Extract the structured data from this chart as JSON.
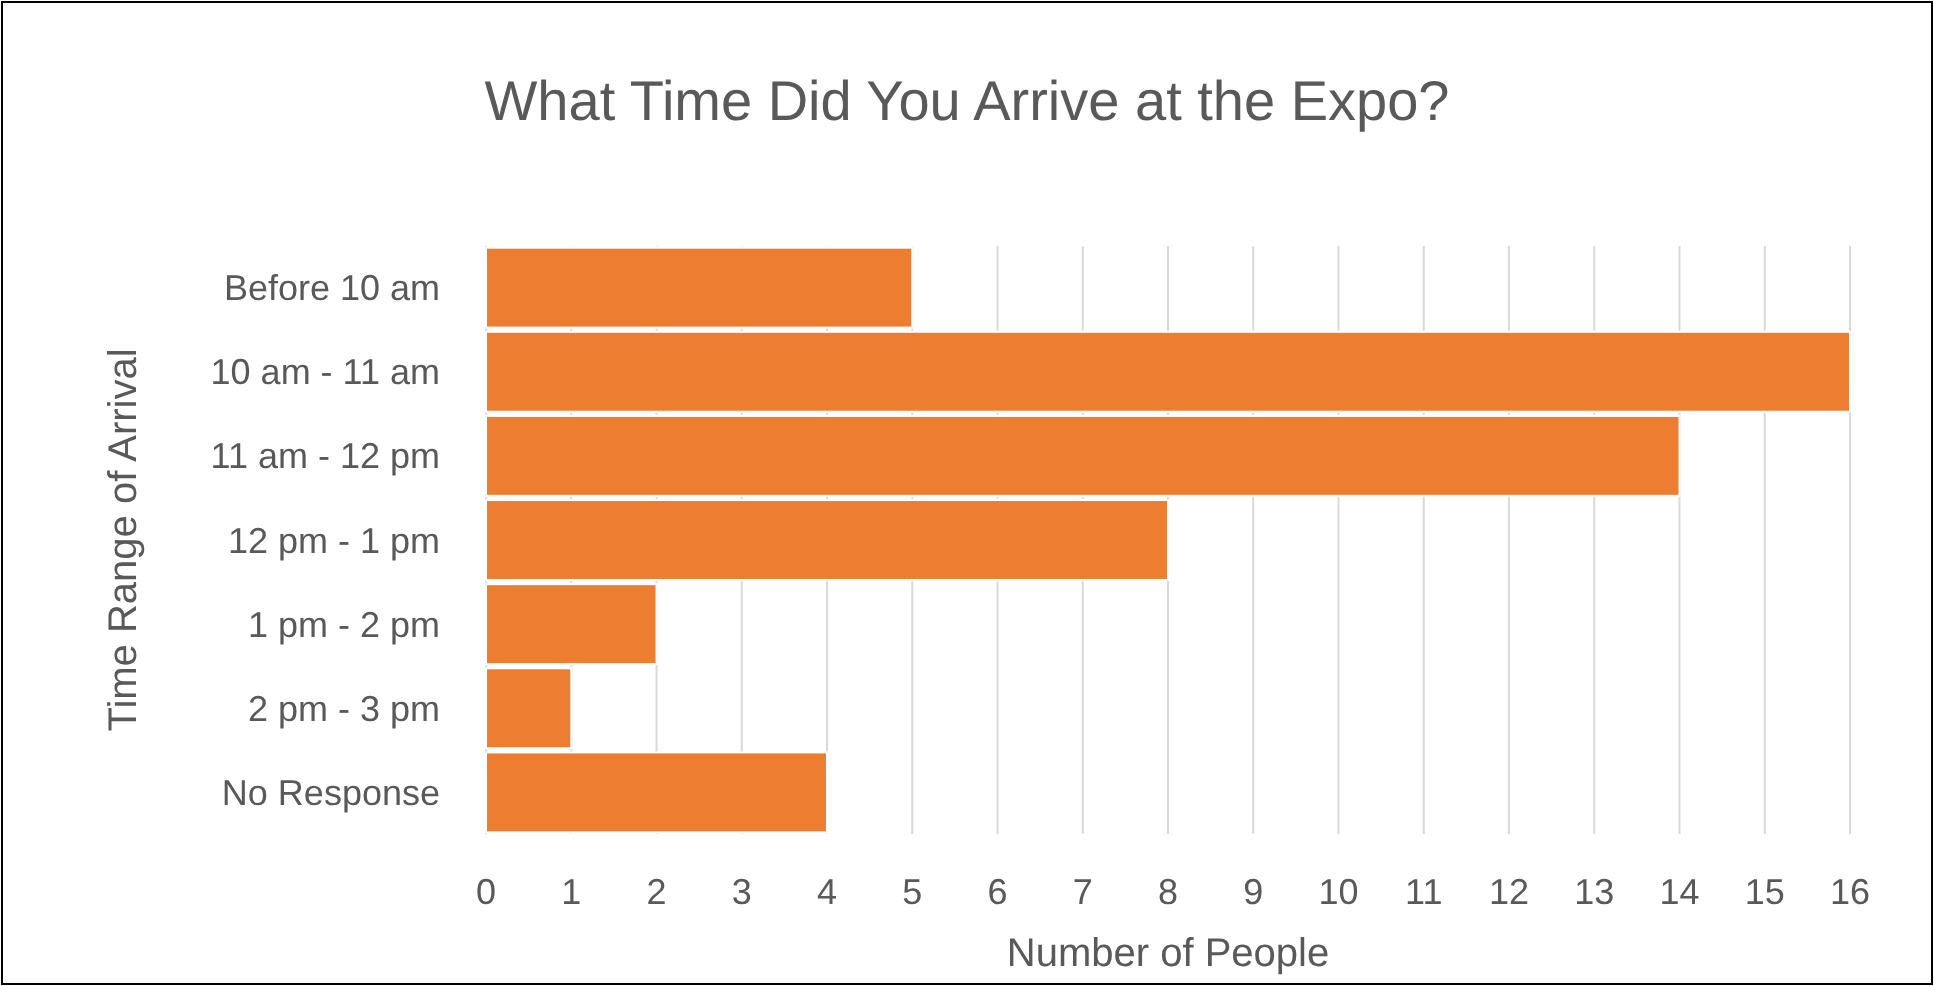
{
  "chart_data": {
    "type": "bar",
    "orientation": "horizontal",
    "title": "What Time Did You Arrive at the Expo?",
    "xlabel": "Number of People",
    "ylabel": "Time Range of Arrival",
    "categories": [
      "Before 10 am",
      "10 am - 11 am",
      "11 am - 12 pm",
      "12 pm - 1 pm",
      "1 pm - 2 pm",
      "2 pm - 3 pm",
      "No Response"
    ],
    "values": [
      5,
      16,
      14,
      8,
      2,
      1,
      4
    ],
    "color": "#ed7d31",
    "xlim": [
      0,
      16
    ],
    "xticks": [
      0,
      1,
      2,
      3,
      4,
      5,
      6,
      7,
      8,
      9,
      10,
      11,
      12,
      13,
      14,
      15,
      16
    ],
    "grid": "x"
  }
}
